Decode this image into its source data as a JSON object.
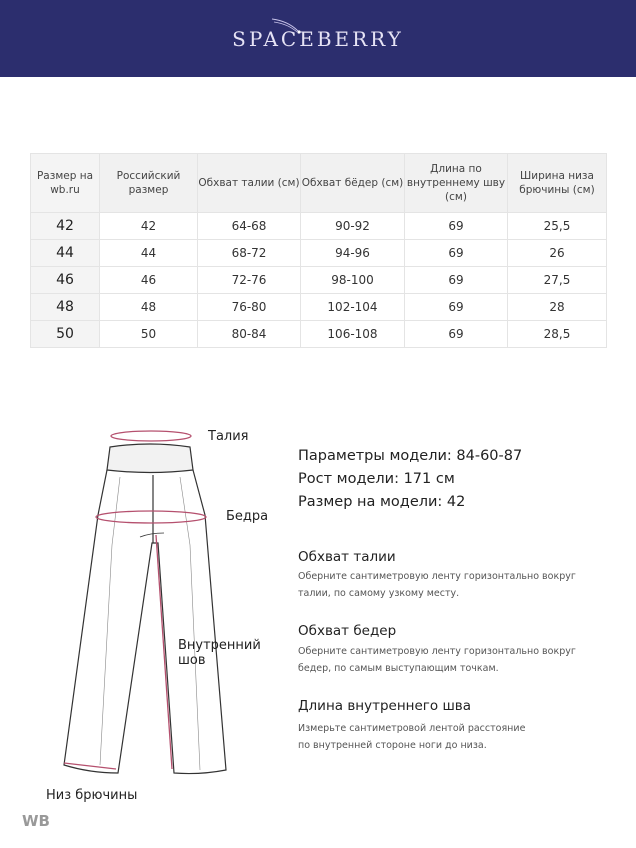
{
  "brand": {
    "name": "SPACEBERRY",
    "color": "#2c2e6e"
  },
  "table": {
    "headers": [
      "Размер на wb.ru",
      "Российский размер",
      "Обхват талии (см)",
      "Обхват бёдер (см)",
      "Длина по внутреннему шву (см)",
      "Ширина низа брючины (см)"
    ],
    "rows": [
      [
        "42",
        "42",
        "64-68",
        "90-92",
        "69",
        "25,5"
      ],
      [
        "44",
        "44",
        "68-72",
        "94-96",
        "69",
        "26"
      ],
      [
        "46",
        "46",
        "72-76",
        "98-100",
        "69",
        "27,5"
      ],
      [
        "48",
        "48",
        "76-80",
        "102-104",
        "69",
        "28"
      ],
      [
        "50",
        "50",
        "80-84",
        "106-108",
        "69",
        "28,5"
      ]
    ]
  },
  "diagram": {
    "waist": "Талия",
    "hips": "Бедра",
    "inseam_1": "Внутренний",
    "inseam_2": "шов",
    "hem": "Низ брючины",
    "accent": "#b5506e"
  },
  "model": {
    "params": "Параметры модели: 84-60-87",
    "height": "Рост модели: 171 см",
    "size": "Размер на модели: 42"
  },
  "sections": [
    {
      "title": "Обхват талии",
      "line1": "Оберните сантиметровую ленту горизонтально вокруг",
      "line2": "талии, по самому узкому месту."
    },
    {
      "title": "Обхват бедер",
      "line1": "Оберните сантиметровую ленту горизонтально вокруг",
      "line2": "бедер, по самым выступающим точкам."
    },
    {
      "title": "Длина внутреннего шва",
      "line1": "Измерьте сантиметровой лентой расстояние",
      "line2": "по внутренней стороне ноги до низа."
    }
  ],
  "watermark": "WB"
}
